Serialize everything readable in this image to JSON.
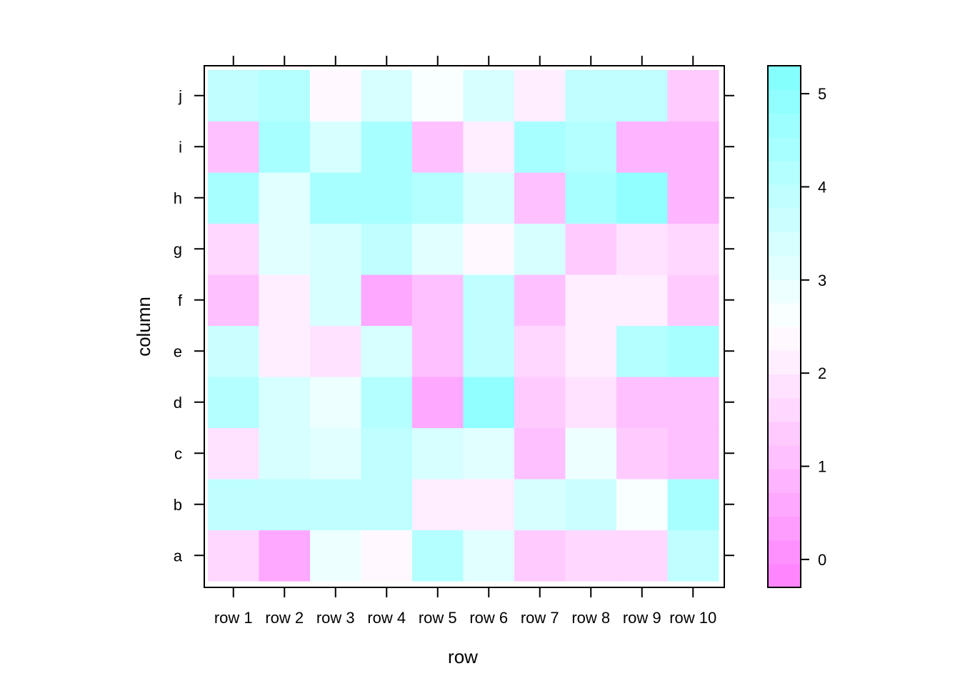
{
  "chart_data": {
    "type": "heatmap",
    "title": "",
    "xlabel": "row",
    "ylabel": "column",
    "x_categories": [
      "row 1",
      "row 2",
      "row 3",
      "row 4",
      "row 5",
      "row 6",
      "row 7",
      "row 8",
      "row 9",
      "row 10"
    ],
    "y_categories": [
      "a",
      "b",
      "c",
      "d",
      "e",
      "f",
      "g",
      "h",
      "i",
      "j"
    ],
    "values": [
      [
        1.5,
        0.6,
        2.8,
        2.3,
        4.2,
        3.1,
        1.3,
        1.7,
        1.5,
        3.8
      ],
      [
        3.8,
        3.8,
        3.8,
        3.8,
        2.0,
        2.1,
        3.4,
        3.7,
        2.5,
        4.5
      ],
      [
        1.8,
        3.3,
        3.1,
        3.8,
        3.5,
        3.1,
        1.0,
        2.9,
        1.3,
        1.2
      ],
      [
        4.2,
        3.3,
        2.9,
        4.2,
        0.6,
        4.8,
        1.3,
        1.9,
        1.2,
        1.1
      ],
      [
        3.6,
        2.0,
        1.9,
        3.4,
        1.2,
        3.9,
        1.7,
        2.1,
        4.2,
        4.3
      ],
      [
        1.2,
        2.0,
        3.4,
        0.7,
        1.2,
        3.9,
        1.0,
        2.0,
        2.1,
        1.4
      ],
      [
        1.5,
        3.1,
        3.5,
        3.8,
        3.2,
        2.3,
        3.5,
        1.3,
        1.8,
        1.5
      ],
      [
        4.5,
        3.1,
        4.5,
        4.5,
        4.2,
        3.5,
        1.2,
        4.4,
        4.8,
        0.9
      ],
      [
        1.2,
        4.5,
        3.3,
        4.5,
        1.0,
        2.2,
        4.5,
        4.2,
        0.9,
        0.9
      ],
      [
        3.8,
        4.2,
        2.3,
        3.4,
        2.6,
        3.5,
        2.2,
        4.0,
        3.8,
        1.3
      ]
    ],
    "colorbar": {
      "range": [
        -0.3,
        5.3
      ],
      "ticks": [
        0,
        1,
        2,
        3,
        4,
        5
      ],
      "tick_labels": [
        "0",
        "1",
        "2",
        "3",
        "4",
        "5"
      ],
      "low_color": "#ff80ff",
      "mid_color": "#ffffff",
      "high_color": "#80ffff",
      "levels": 22
    },
    "grid": false,
    "legend": "right colorbar"
  }
}
